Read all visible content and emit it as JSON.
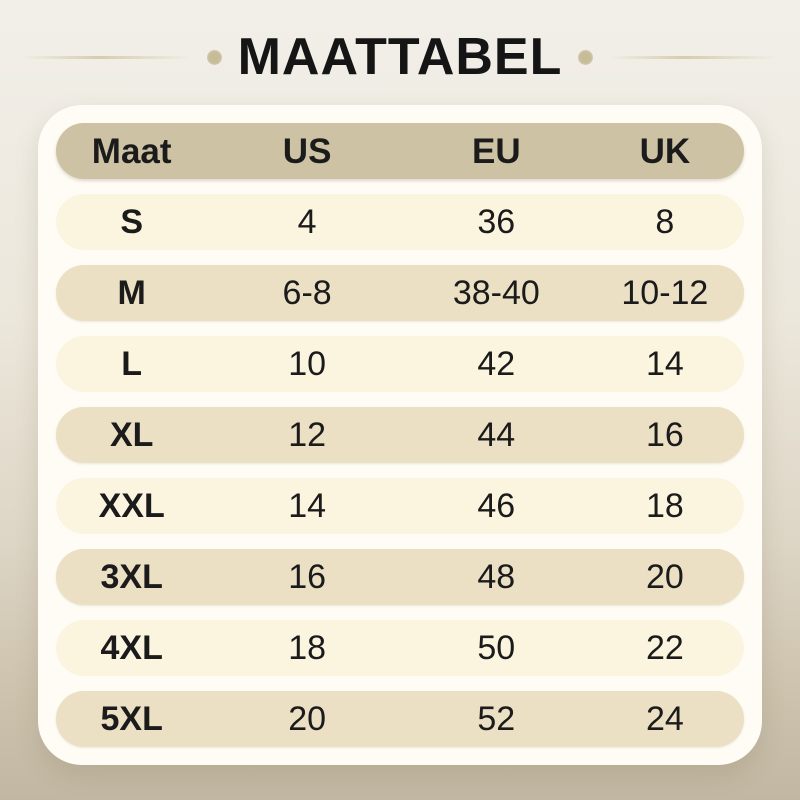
{
  "title": "MAATTABEL",
  "colors": {
    "background_top": "#f2efe9",
    "background_bottom": "#c1b7a2",
    "card": "#fefcf5",
    "header_pill": "#cec2a4",
    "row_light": "#fbf4df",
    "row_dark": "#ebdfc4",
    "text": "#1b1b1b",
    "decoration": "#c9bd9b"
  },
  "table": {
    "headers": [
      "Maat",
      "US",
      "EU",
      "UK"
    ],
    "rows": [
      [
        "S",
        "4",
        "36",
        "8"
      ],
      [
        "M",
        "6-8",
        "38-40",
        "10-12"
      ],
      [
        "L",
        "10",
        "42",
        "14"
      ],
      [
        "XL",
        "12",
        "44",
        "16"
      ],
      [
        "XXL",
        "14",
        "46",
        "18"
      ],
      [
        "3XL",
        "16",
        "48",
        "20"
      ],
      [
        "4XL",
        "18",
        "50",
        "22"
      ],
      [
        "5XL",
        "20",
        "52",
        "24"
      ]
    ]
  },
  "chart_data": {
    "type": "table",
    "title": "MAATTABEL",
    "columns": [
      "Maat",
      "US",
      "EU",
      "UK"
    ],
    "rows": [
      [
        "S",
        "4",
        "36",
        "8"
      ],
      [
        "M",
        "6-8",
        "38-40",
        "10-12"
      ],
      [
        "L",
        "10",
        "42",
        "14"
      ],
      [
        "XL",
        "12",
        "44",
        "16"
      ],
      [
        "XXL",
        "14",
        "46",
        "18"
      ],
      [
        "3XL",
        "16",
        "48",
        "20"
      ],
      [
        "4XL",
        "18",
        "50",
        "22"
      ],
      [
        "5XL",
        "20",
        "52",
        "24"
      ]
    ],
    "legend_position": "none",
    "grid": false
  }
}
